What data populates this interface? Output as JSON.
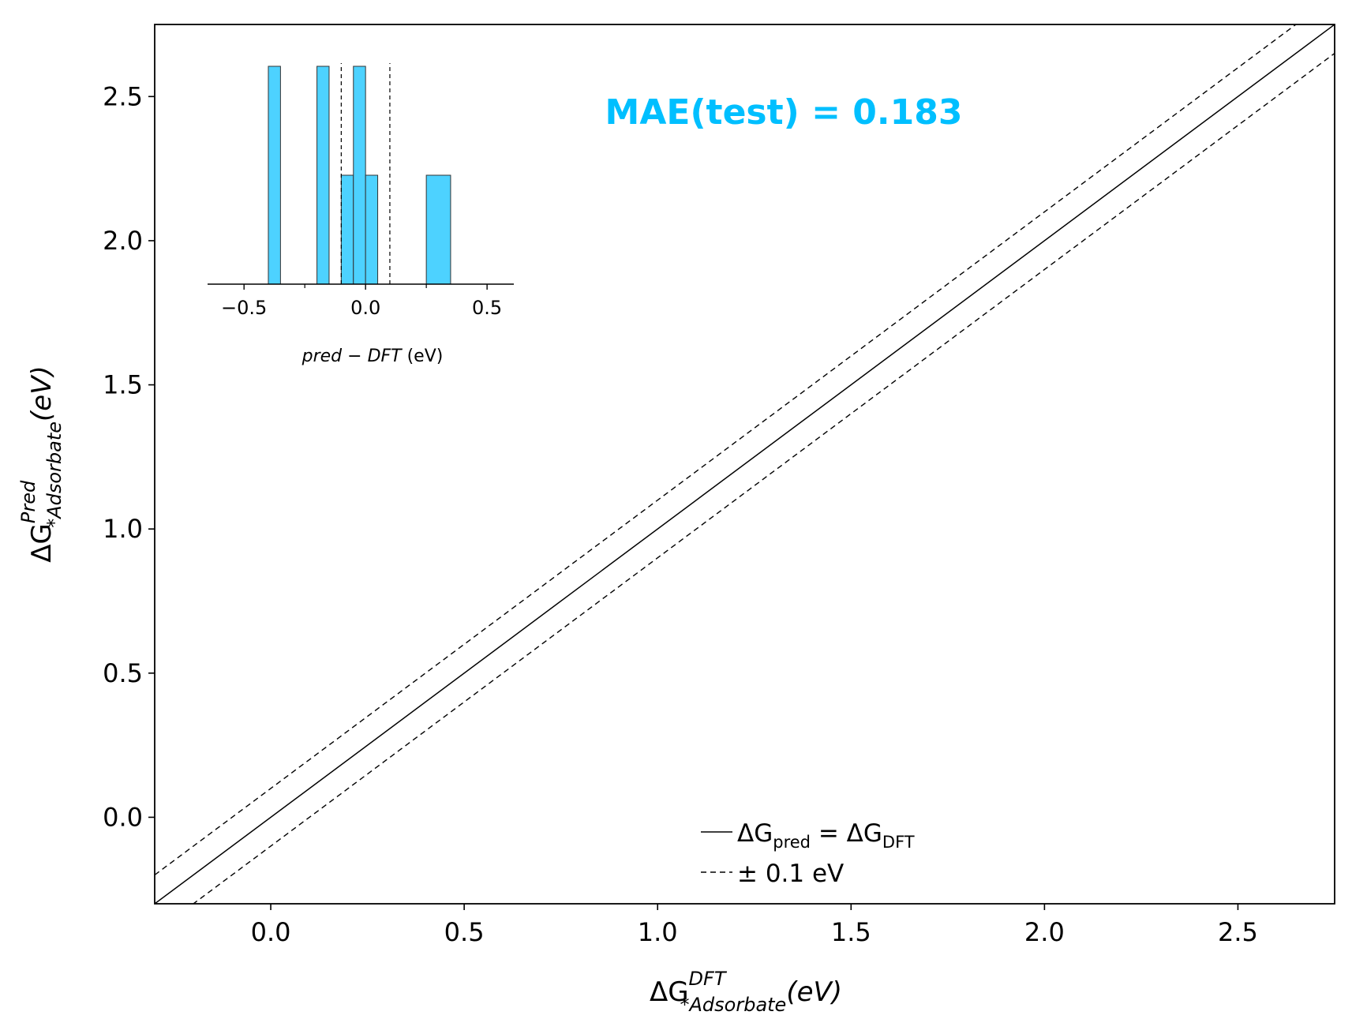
{
  "chart_data": {
    "type": "line",
    "annotation": {
      "text": "MAE(test) = 0.183",
      "color": "#00bfff"
    },
    "main": {
      "xlabel": {
        "base": "ΔG",
        "sup": "DFT",
        "sub": "*Adsorbate",
        "tail": "(eV)"
      },
      "ylabel": {
        "base": "ΔG",
        "sup": "Pred",
        "sub": "*Adsorbate",
        "tail": "(eV)"
      },
      "xlim": [
        -0.3,
        2.75
      ],
      "ylim": [
        -0.3,
        2.75
      ],
      "xticks": [
        {
          "value": 0.0,
          "label": "0.0"
        },
        {
          "value": 0.5,
          "label": "0.5"
        },
        {
          "value": 1.0,
          "label": "1.0"
        },
        {
          "value": 1.5,
          "label": "1.5"
        },
        {
          "value": 2.0,
          "label": "2.0"
        },
        {
          "value": 2.5,
          "label": "2.5"
        }
      ],
      "yticks": [
        {
          "value": 0.0,
          "label": "0.0"
        },
        {
          "value": 0.5,
          "label": "0.5"
        },
        {
          "value": 1.0,
          "label": "1.0"
        },
        {
          "value": 1.5,
          "label": "1.5"
        },
        {
          "value": 2.0,
          "label": "2.0"
        },
        {
          "value": 2.5,
          "label": "2.5"
        }
      ],
      "grid": false,
      "series": [
        {
          "name": "ΔGpred = ΔGDFT",
          "style": "solid",
          "color": "#000000",
          "offset": 0.0
        },
        {
          "name": "± 0.1 eV",
          "style": "dashed",
          "color": "#000000",
          "offset": 0.1
        },
        {
          "style": "dashed",
          "color": "#000000",
          "offset": -0.1
        }
      ],
      "legend": {
        "placement": "lower-center",
        "entries": [
          {
            "style": "solid",
            "parts": [
              {
                "t": "ΔG"
              },
              {
                "t": "pred",
                "sub": true
              },
              {
                "t": " = ΔG"
              },
              {
                "t": "DFT",
                "sub": true
              }
            ]
          },
          {
            "style": "dashed",
            "parts": [
              {
                "t": "±  0.1 eV"
              }
            ]
          }
        ]
      }
    },
    "inset": {
      "type": "histogram",
      "xlabel": {
        "italic": "pred − DFT",
        "tail": " (eV)"
      },
      "xlim": [
        -0.65,
        0.61
      ],
      "xticks": [
        {
          "value": -0.5,
          "label": "−0.5"
        },
        {
          "value": 0.0,
          "label": "0.0"
        },
        {
          "value": 0.5,
          "label": "0.5"
        }
      ],
      "minor_xticks": [
        -0.25,
        0.25
      ],
      "bar_color": "#4dd2ff",
      "bins": [
        {
          "x0": -0.4,
          "x1": -0.35,
          "height": 1.0
        },
        {
          "x0": -0.2,
          "x1": -0.15,
          "height": 1.0
        },
        {
          "x0": -0.1,
          "x1": -0.05,
          "height": 0.5
        },
        {
          "x0": -0.05,
          "x1": 0.0,
          "height": 1.0
        },
        {
          "x0": 0.0,
          "x1": 0.05,
          "height": 0.5
        },
        {
          "x0": 0.25,
          "x1": 0.35,
          "height": 0.5
        }
      ],
      "vlines": [
        -0.1,
        0.1
      ]
    }
  }
}
